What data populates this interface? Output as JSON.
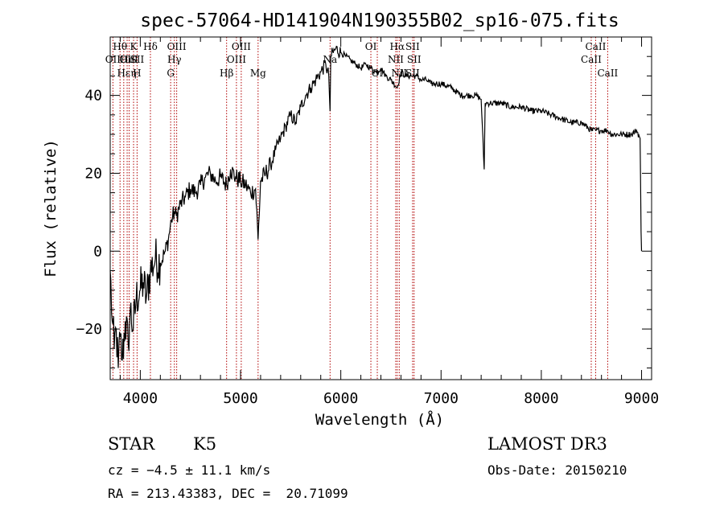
{
  "chart_data": {
    "type": "line",
    "title": "spec-57064-HD141904N190355B02_sp16-075.fits",
    "xlabel": "Wavelength (Å)",
    "ylabel": "Flux (relative)",
    "xlim": [
      3700,
      9100
    ],
    "ylim": [
      -33,
      55
    ],
    "x_ticks": [
      4000,
      5000,
      6000,
      7000,
      8000,
      9000
    ],
    "y_ticks": [
      -20,
      0,
      20,
      40
    ],
    "series": [
      {
        "name": "flux",
        "x": [
          3700,
          3720,
          3740,
          3760,
          3780,
          3800,
          3820,
          3850,
          3880,
          3900,
          3930,
          3960,
          4000,
          4030,
          4060,
          4100,
          4150,
          4200,
          4250,
          4280,
          4310,
          4340,
          4360,
          4400,
          4450,
          4500,
          4550,
          4600,
          4650,
          4700,
          4750,
          4800,
          4860,
          4900,
          4950,
          5000,
          5050,
          5100,
          5150,
          5175,
          5200,
          5250,
          5300,
          5350,
          5400,
          5450,
          5500,
          5550,
          5600,
          5650,
          5700,
          5750,
          5800,
          5850,
          5880,
          5893,
          5900,
          5950,
          6000,
          6050,
          6100,
          6150,
          6200,
          6250,
          6300,
          6350,
          6400,
          6450,
          6500,
          6563,
          6600,
          6650,
          6700,
          6750,
          6800,
          6850,
          6900,
          6950,
          7000,
          7100,
          7200,
          7300,
          7350,
          7400,
          7430,
          7440,
          7450,
          7500,
          7600,
          7700,
          7800,
          7900,
          8000,
          8100,
          8200,
          8300,
          8400,
          8498,
          8542,
          8600,
          8662,
          8700,
          8800,
          8900,
          8950,
          8985,
          8995,
          9000
        ],
        "y": [
          -5,
          -18,
          -25,
          -20,
          -30,
          -22,
          -28,
          -18,
          -24,
          -15,
          -20,
          -12,
          -10,
          -8,
          -12,
          -5,
          -2,
          -3,
          0,
          3,
          8,
          10,
          9,
          12,
          14,
          16,
          15,
          17,
          19,
          20,
          18,
          19,
          17,
          21,
          19,
          18,
          17,
          15,
          16,
          3,
          18,
          20,
          22,
          26,
          29,
          32,
          35,
          33,
          37,
          40,
          42,
          44,
          46,
          48,
          45,
          36,
          50,
          52,
          51,
          50,
          49,
          48,
          47,
          48,
          47,
          46,
          47,
          45,
          44,
          42,
          46,
          45,
          45,
          45,
          44,
          44,
          43,
          43,
          43,
          42,
          40,
          40,
          40,
          39,
          21,
          38,
          38,
          38,
          38,
          37,
          37,
          36,
          36,
          35,
          34,
          33,
          33,
          31,
          31,
          31,
          31,
          30,
          30,
          30,
          31,
          29,
          5,
          0
        ]
      }
    ],
    "lines": [
      {
        "wavelength": 3727,
        "rows": [
          "",
          "OII"
        ]
      },
      {
        "wavelength": 3798,
        "rows": [
          "Hθ"
        ]
      },
      {
        "wavelength": 3835,
        "rows": [
          "",
          "",
          "Hε"
        ]
      },
      {
        "wavelength": 3869,
        "rows": [
          "",
          "OII"
        ]
      },
      {
        "wavelength": 3889,
        "rows": [
          "",
          "HeI"
        ]
      },
      {
        "wavelength": 3933,
        "rows": [
          "K",
          "",
          "η"
        ]
      },
      {
        "wavelength": 3968,
        "rows": [
          "",
          "SII",
          "H"
        ]
      },
      {
        "wavelength": 4101,
        "rows": [
          "Hδ"
        ]
      },
      {
        "wavelength": 4303,
        "rows": [
          "",
          "",
          "G"
        ]
      },
      {
        "wavelength": 4340,
        "rows": [
          "",
          "Hγ"
        ]
      },
      {
        "wavelength": 4363,
        "rows": [
          "OIII"
        ]
      },
      {
        "wavelength": 4861,
        "rows": [
          "",
          "",
          "Hβ"
        ]
      },
      {
        "wavelength": 4959,
        "rows": [
          "",
          "OIII"
        ]
      },
      {
        "wavelength": 5007,
        "rows": [
          "OIII"
        ]
      },
      {
        "wavelength": 5175,
        "rows": [
          "",
          "",
          "Mg"
        ]
      },
      {
        "wavelength": 5893,
        "rows": [
          "",
          "Na"
        ]
      },
      {
        "wavelength": 6300,
        "rows": [
          "OI"
        ]
      },
      {
        "wavelength": 6364,
        "rows": [
          "",
          "",
          "OI"
        ]
      },
      {
        "wavelength": 6548,
        "rows": [
          "",
          "NII"
        ]
      },
      {
        "wavelength": 6563,
        "rows": [
          "Hα"
        ]
      },
      {
        "wavelength": 6583,
        "rows": [
          "",
          "",
          "NII"
        ]
      },
      {
        "wavelength": 6716,
        "rows": [
          "SII",
          "",
          "SII"
        ]
      },
      {
        "wavelength": 6731,
        "rows": [
          "",
          "SII"
        ]
      },
      {
        "wavelength": 8498,
        "rows": [
          "",
          "CaII"
        ]
      },
      {
        "wavelength": 8542,
        "rows": [
          "CaII"
        ]
      },
      {
        "wavelength": 8662,
        "rows": [
          "",
          "",
          "CaII"
        ]
      }
    ]
  },
  "info": {
    "class": "STAR",
    "subclass": "K5",
    "survey": "LAMOST DR3",
    "redshift": "cz = −4.5 ± 11.1 km/s",
    "obs_date": "Obs-Date: 20150210",
    "coords": "RA = 213.43383, DEC =  20.71099"
  },
  "colors": {
    "spectrum": "#000000",
    "line_marker": "#b00000",
    "axis": "#000000"
  }
}
